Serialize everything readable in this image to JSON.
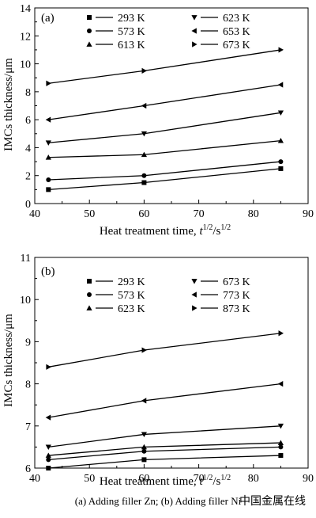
{
  "caption": "(a) Adding filler Zn; (b) Adding filler Ni",
  "watermark": "中国金属在线",
  "colors": {
    "line": "#000000",
    "watermark": "#e3a9a9"
  },
  "chart_data": [
    {
      "type": "line",
      "panel_label": "(a)",
      "xlabel": "Heat treatment time, t1/2/s1/2",
      "xlabel_main": "Heat treatment time, ",
      "xlabel_t": "t",
      "xlabel_sup1": "1/2",
      "xlabel_mid": "/s",
      "xlabel_sup2": "1/2",
      "ylabel": "IMCs thickness/μm",
      "xlim": [
        40,
        90
      ],
      "ylim": [
        0,
        14
      ],
      "xticks": [
        40,
        50,
        60,
        70,
        80,
        90
      ],
      "yticks": [
        0,
        2,
        4,
        6,
        8,
        10,
        12,
        14
      ],
      "x": [
        42.5,
        60,
        85
      ],
      "legend_position": "top-right, two columns",
      "series": [
        {
          "name": "293 K",
          "marker": "square",
          "values": [
            1.0,
            1.5,
            2.5
          ]
        },
        {
          "name": "573 K",
          "marker": "circle",
          "values": [
            1.7,
            2.0,
            3.0
          ]
        },
        {
          "name": "613 K",
          "marker": "triangle-up",
          "values": [
            3.3,
            3.5,
            4.5
          ]
        },
        {
          "name": "623 K",
          "marker": "triangle-down",
          "values": [
            4.35,
            5.0,
            6.5
          ]
        },
        {
          "name": "653 K",
          "marker": "triangle-left",
          "values": [
            6.0,
            7.0,
            8.5
          ]
        },
        {
          "name": "673 K",
          "marker": "triangle-right",
          "values": [
            8.6,
            9.5,
            11.0
          ]
        }
      ]
    },
    {
      "type": "line",
      "panel_label": "(b)",
      "xlabel": "Heat treatment time, t1/2/s1/2",
      "xlabel_main": "Heat treatment time, ",
      "xlabel_t": "t",
      "xlabel_sup1": "1/2",
      "xlabel_mid": "/s",
      "xlabel_sup2": "1/2",
      "ylabel": "IMCs thickness/μm",
      "xlim": [
        40,
        90
      ],
      "ylim": [
        6,
        11
      ],
      "xticks": [
        40,
        50,
        60,
        70,
        80,
        90
      ],
      "yticks": [
        6,
        7,
        8,
        9,
        10,
        11
      ],
      "x": [
        42.5,
        60,
        85
      ],
      "legend_position": "top-right, two columns",
      "series": [
        {
          "name": "293 K",
          "marker": "square",
          "values": [
            6.0,
            6.2,
            6.3
          ]
        },
        {
          "name": "573 K",
          "marker": "circle",
          "values": [
            6.2,
            6.4,
            6.5
          ]
        },
        {
          "name": "623 K",
          "marker": "triangle-up",
          "values": [
            6.3,
            6.5,
            6.6
          ]
        },
        {
          "name": "673 K",
          "marker": "triangle-down",
          "values": [
            6.5,
            6.8,
            7.0
          ]
        },
        {
          "name": "773 K",
          "marker": "triangle-left",
          "values": [
            7.2,
            7.6,
            8.0
          ]
        },
        {
          "name": "873 K",
          "marker": "triangle-right",
          "values": [
            8.4,
            8.8,
            9.2
          ]
        }
      ]
    }
  ]
}
